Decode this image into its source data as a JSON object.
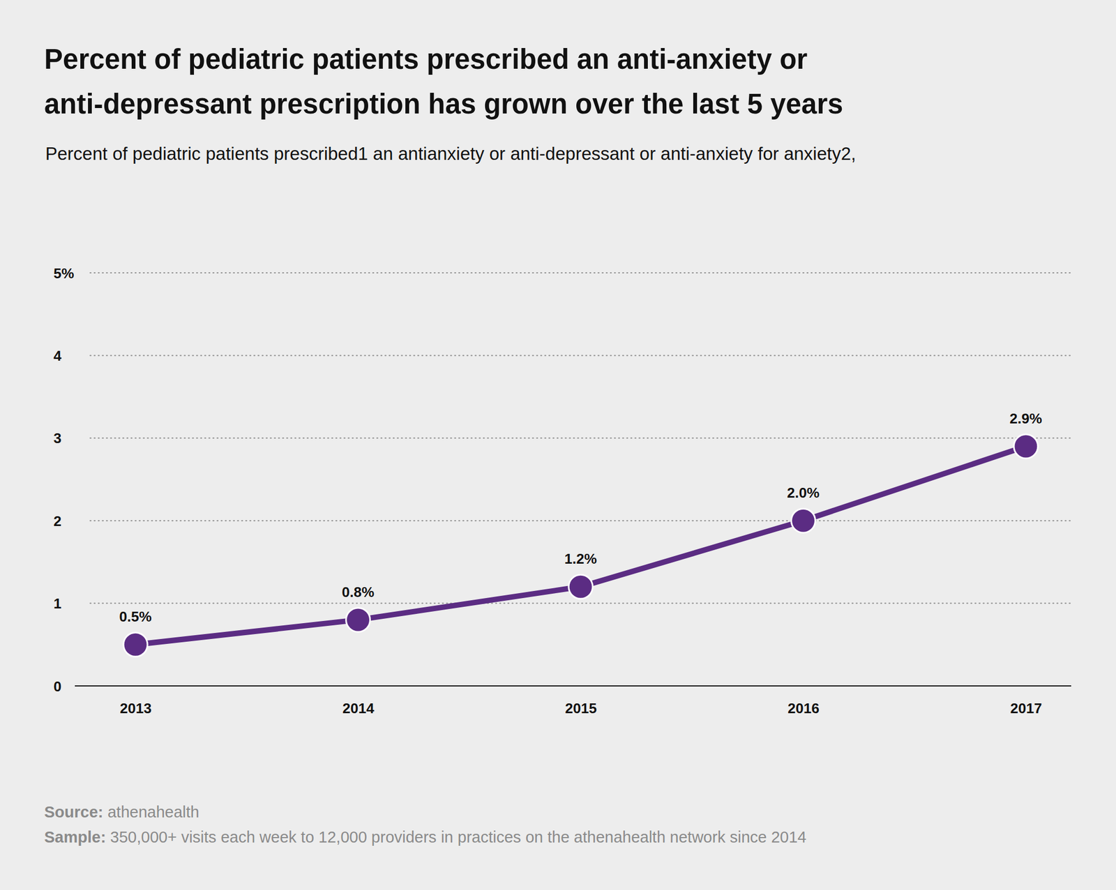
{
  "chart_data": {
    "type": "line",
    "title": "Percent of pediatric patients prescribed an anti-anxiety or anti-depressant prescription has grown over the last 5 years",
    "subtitle": "Percent of pediatric patients prescribed1 an antianxiety or anti-depressant or anti-anxiety for anxiety2,",
    "categories": [
      "2013",
      "2014",
      "2015",
      "2016",
      "2017"
    ],
    "values": [
      0.5,
      0.8,
      1.2,
      2.0,
      2.9
    ],
    "value_labels": [
      "0.5%",
      "0.8%",
      "1.2%",
      "2.0%",
      "2.9%"
    ],
    "data_labels": true,
    "color": "#5b2c83",
    "marker": "circle",
    "line_style": "solid",
    "ylim": [
      0,
      5
    ],
    "yticks": [
      0,
      1,
      2,
      3,
      4,
      {
        "value": 5,
        "label": "5%"
      }
    ],
    "grid": true,
    "annotations": [
      {
        "label": "Source:",
        "text": "athenahealth"
      },
      {
        "label": "Sample:",
        "text": "350,000+ visits each week to 12,000 providers in practices on the athenahealth network since 2014"
      }
    ]
  }
}
